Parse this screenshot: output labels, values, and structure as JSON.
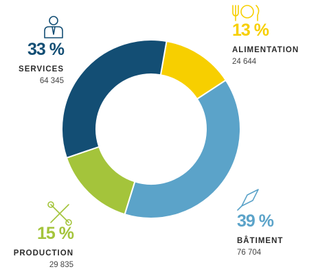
{
  "chart_data": {
    "type": "pie",
    "categories": [
      "SERVICES",
      "ALIMENTATION",
      "BÂTIMENT",
      "PRODUCTION"
    ],
    "values": [
      33,
      13,
      39,
      15
    ],
    "value_labels": [
      "33 %",
      "13 %",
      "39 %",
      "15 %"
    ],
    "counts": [
      "64 345",
      "24 644",
      "76 704",
      "29 835"
    ],
    "colors": [
      "#134e74",
      "#f7cf00",
      "#5ba3c9",
      "#a4c43b"
    ]
  }
}
